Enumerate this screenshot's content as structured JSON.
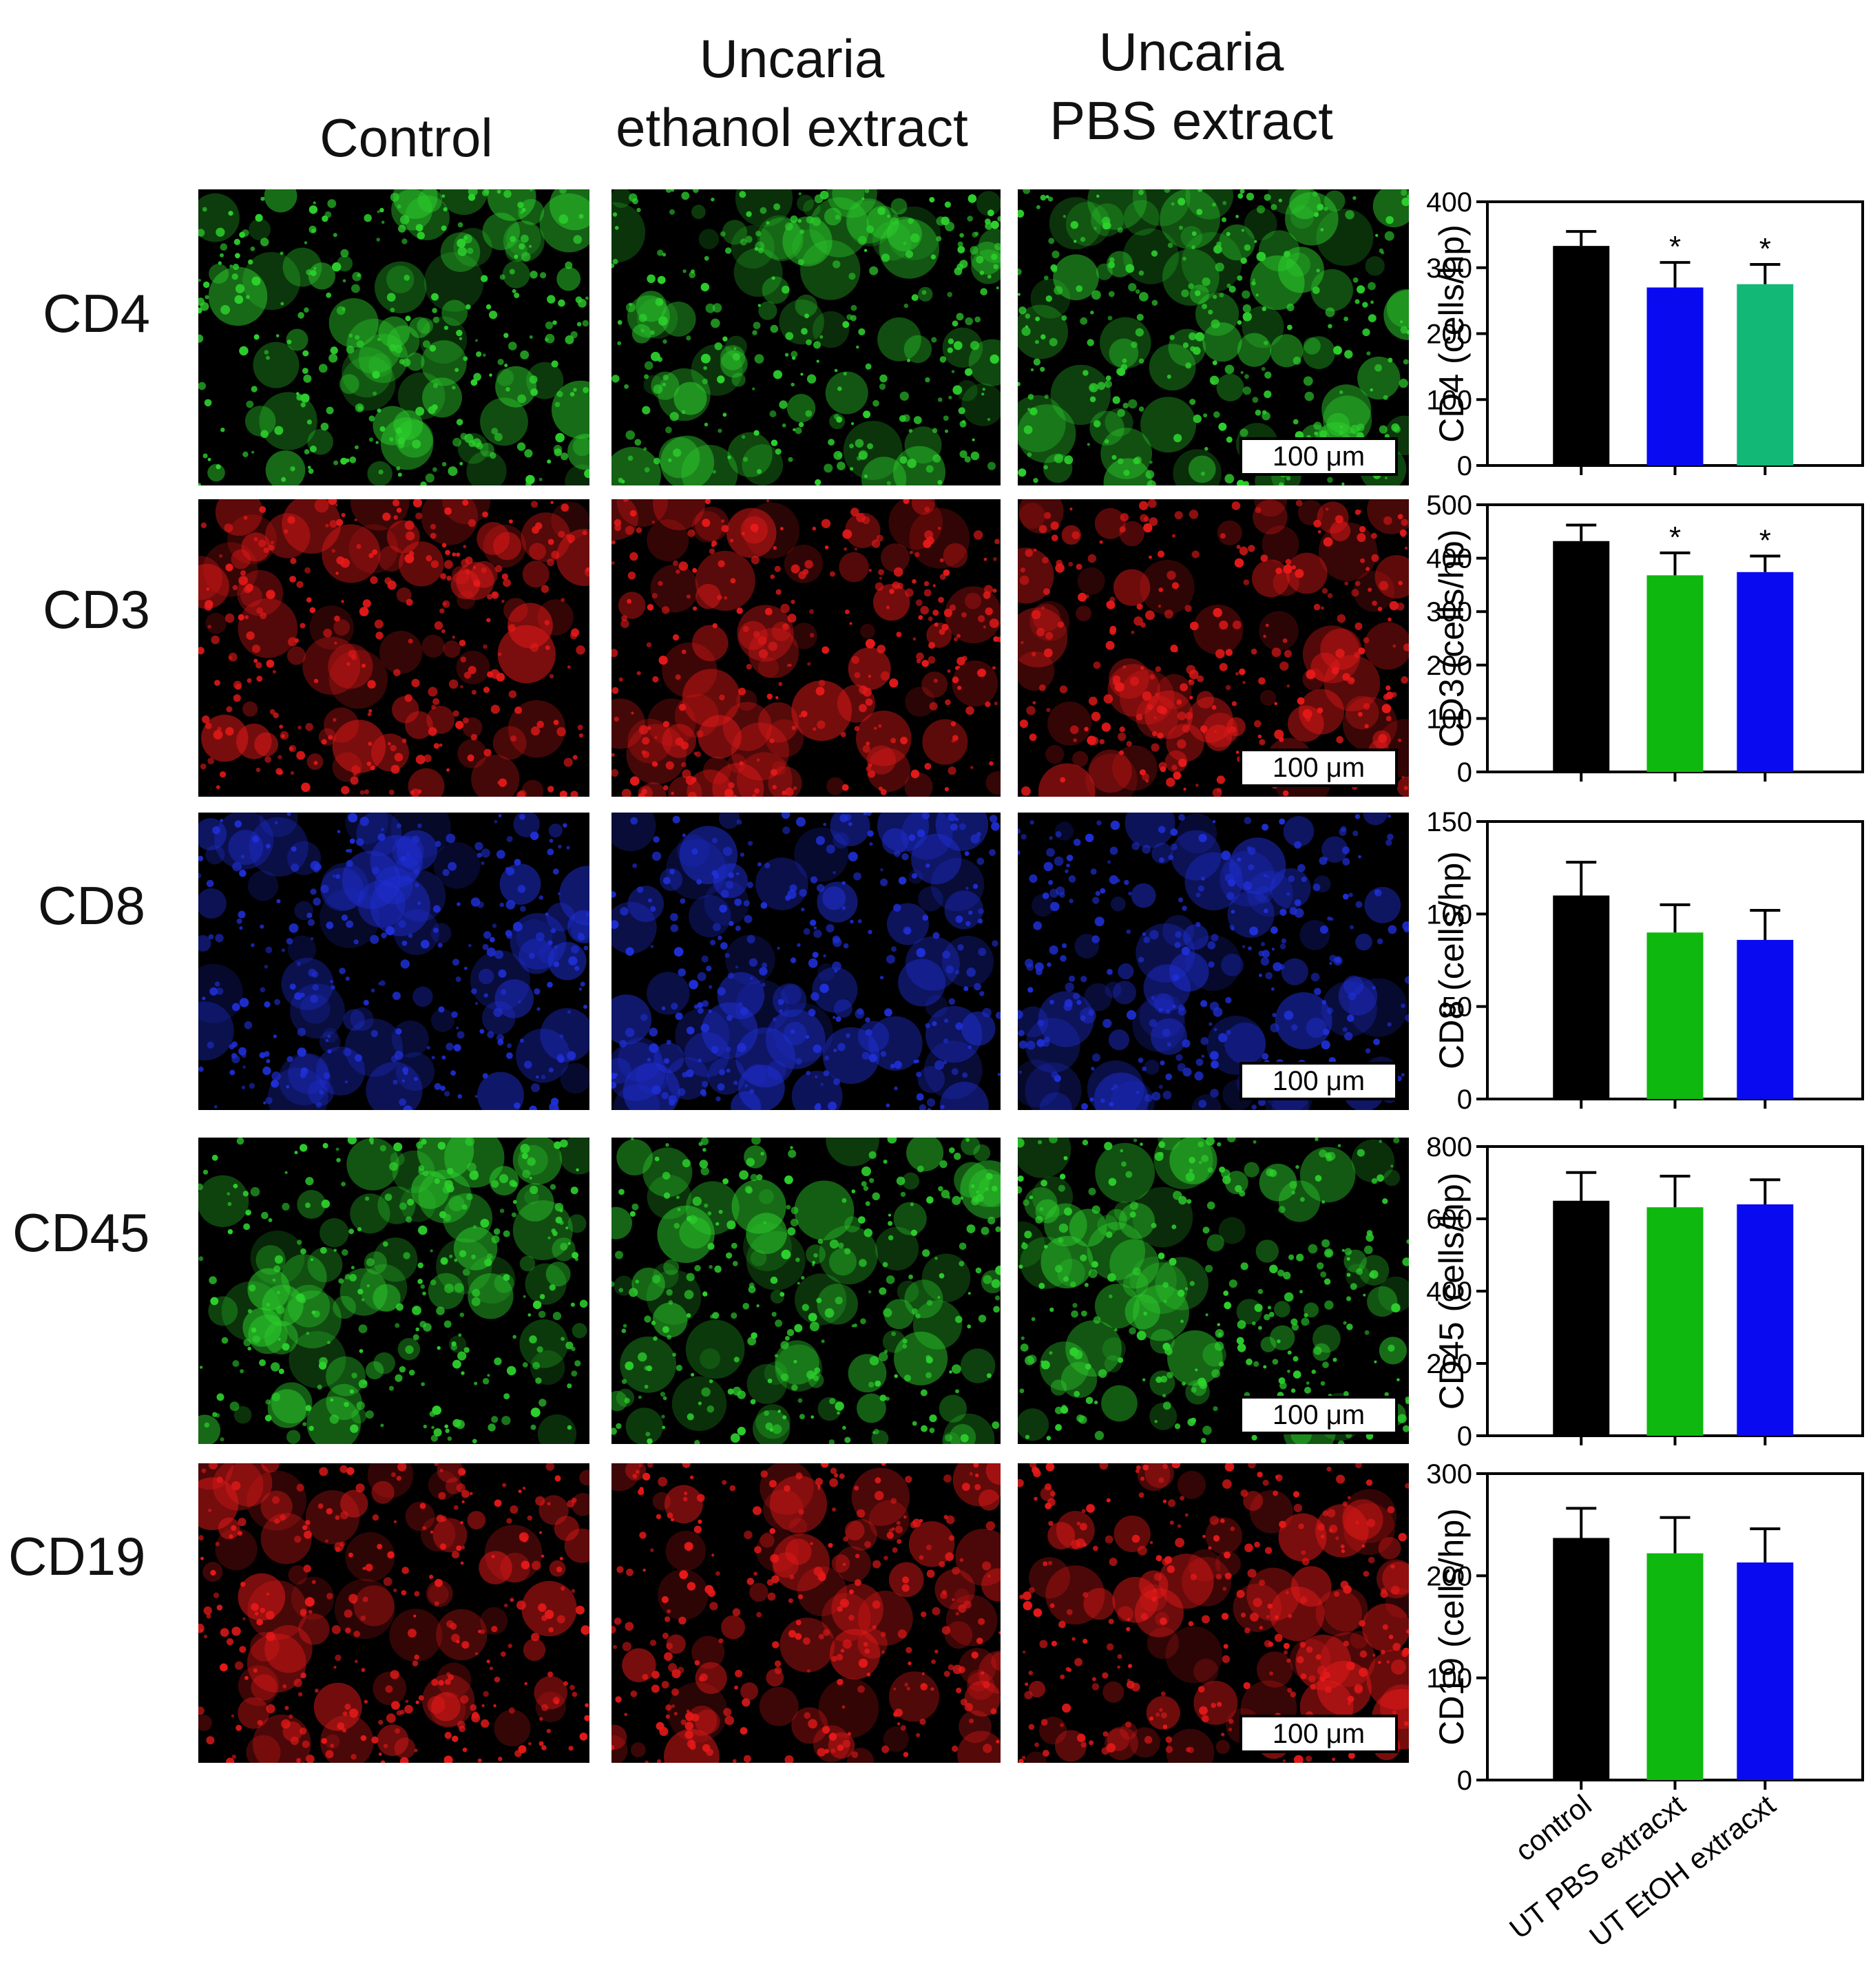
{
  "columns": [
    {
      "id": "control",
      "label": "Control"
    },
    {
      "id": "ethanol",
      "label": "Uncaria\nethanol  extract"
    },
    {
      "id": "pbs",
      "label": "Uncaria\nPBS extract"
    }
  ],
  "rows": [
    {
      "label": "CD4",
      "tint": "#2dd12d",
      "seed": 11
    },
    {
      "label": "CD3",
      "tint": "#e61919",
      "seed": 23
    },
    {
      "label": "CD8",
      "tint": "#1f2fd6",
      "seed": 37
    },
    {
      "label": "CD45",
      "tint": "#2dd12d",
      "seed": 41
    },
    {
      "label": "CD19",
      "tint": "#e61919",
      "seed": 53
    }
  ],
  "scale_bar_label": "100 μm",
  "chart_data": [
    {
      "type": "bar",
      "ylabel": "CD4 (cells/hp)",
      "ylim": [
        0,
        400
      ],
      "yticks": [
        0,
        100,
        200,
        300,
        400
      ],
      "categories": [
        "control",
        "UT PBS extracxt",
        "UT EtOH extracxt"
      ],
      "values": [
        333,
        270,
        275
      ],
      "errors": [
        22,
        38,
        30
      ],
      "colors": [
        "#000000",
        "#0a0af0",
        "#11b876"
      ],
      "significance": [
        "",
        "*",
        "*"
      ]
    },
    {
      "type": "bar",
      "ylabel": "CD3 (cells/hp)",
      "ylim": [
        0,
        500
      ],
      "yticks": [
        0,
        100,
        200,
        300,
        400,
        500
      ],
      "categories": [
        "control",
        "UT PBS extracxt",
        "UT EtOH extracxt"
      ],
      "values": [
        432,
        368,
        374
      ],
      "errors": [
        30,
        42,
        30
      ],
      "colors": [
        "#000000",
        "#0fb80f",
        "#0a0af0"
      ],
      "significance": [
        "",
        "*",
        "*"
      ]
    },
    {
      "type": "bar",
      "ylabel": "CD8 (cells/hp)",
      "ylim": [
        0,
        150
      ],
      "yticks": [
        0,
        50,
        100,
        150
      ],
      "categories": [
        "control",
        "UT PBS extracxt",
        "UT EtOH extracxt"
      ],
      "values": [
        110,
        90,
        86
      ],
      "errors": [
        18,
        15,
        16
      ],
      "colors": [
        "#000000",
        "#0fb80f",
        "#0a0af0"
      ],
      "significance": [
        "",
        "",
        ""
      ]
    },
    {
      "type": "bar",
      "ylabel": "CD45 (cells/hp)",
      "ylim": [
        0,
        800
      ],
      "yticks": [
        0,
        200,
        400,
        600,
        800
      ],
      "categories": [
        "control",
        "UT PBS extracxt",
        "UT EtOH extracxt"
      ],
      "values": [
        650,
        632,
        640
      ],
      "errors": [
        78,
        86,
        68
      ],
      "colors": [
        "#000000",
        "#0fb80f",
        "#0a0af0"
      ],
      "significance": [
        "",
        "",
        ""
      ]
    },
    {
      "type": "bar",
      "ylabel": "CD19 (cells/hp)",
      "ylim": [
        0,
        300
      ],
      "yticks": [
        0,
        100,
        200,
        300
      ],
      "categories": [
        "control",
        "UT PBS extracxt",
        "UT EtOH extracxt"
      ],
      "values": [
        237,
        222,
        213
      ],
      "errors": [
        29,
        35,
        33
      ],
      "colors": [
        "#000000",
        "#0fb80f",
        "#0a0af0"
      ],
      "significance": [
        "",
        "",
        ""
      ]
    }
  ]
}
